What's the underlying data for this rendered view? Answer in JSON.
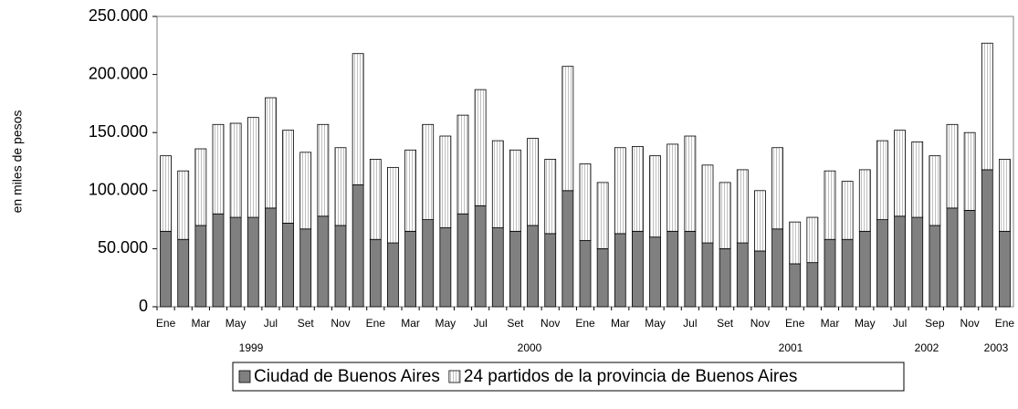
{
  "chart_data": {
    "type": "stacked_bar",
    "y_label": "en miles de pesos",
    "categories": [
      "Ene",
      null,
      "Mar",
      null,
      "May",
      null,
      "Jul",
      null,
      "Set",
      null,
      "Nov",
      null,
      "Ene",
      null,
      "Mar",
      null,
      "May",
      null,
      "Jul",
      null,
      "Set",
      null,
      "Nov",
      null,
      "Ene",
      null,
      "Mar",
      null,
      "May",
      null,
      "Jul",
      null,
      "Set",
      null,
      "Nov",
      null,
      "Ene",
      null,
      "Mar",
      null,
      "May",
      null,
      "Jul",
      null,
      "Sep",
      null,
      "Nov",
      null,
      "Ene"
    ],
    "year_labels": [
      "1999",
      "2000",
      "2001",
      "2002",
      "2003"
    ],
    "series": [
      {
        "name": "Ciudad de Buenos Aires",
        "color": "#808080",
        "values": [
          65000,
          58000,
          70000,
          80000,
          77000,
          77000,
          85000,
          72000,
          67000,
          78000,
          70000,
          105000,
          58000,
          55000,
          65000,
          75000,
          68000,
          80000,
          87000,
          68000,
          65000,
          70000,
          63000,
          100000,
          57000,
          50000,
          63000,
          65000,
          60000,
          65000,
          65000,
          55000,
          50000,
          55000,
          48000,
          67000,
          37000,
          38000,
          58000,
          58000,
          65000,
          75000,
          78000,
          77000,
          70000,
          85000,
          83000,
          118000,
          65000
        ]
      },
      {
        "name": "24 partidos de la provincia de Buenos Aires",
        "color": "#ffffff",
        "values": [
          65000,
          59000,
          66000,
          77000,
          81000,
          86000,
          95000,
          80000,
          66000,
          79000,
          67000,
          113000,
          69000,
          65000,
          70000,
          82000,
          79000,
          85000,
          100000,
          75000,
          70000,
          75000,
          64000,
          107000,
          66000,
          57000,
          74000,
          73000,
          70000,
          75000,
          82000,
          67000,
          57000,
          63000,
          52000,
          70000,
          36000,
          39000,
          59000,
          50000,
          53000,
          68000,
          74000,
          65000,
          60000,
          72000,
          67000,
          109000,
          62000
        ]
      }
    ],
    "ylim": [
      0,
      250000
    ],
    "yticks": [
      0,
      {
        "value": 50000,
        "label": "50.000"
      },
      {
        "value": 100000,
        "label": "100.000"
      },
      {
        "value": 150000,
        "label": "150.000"
      },
      {
        "value": 200000,
        "label": "200.000"
      },
      {
        "value": 250000,
        "label": "250.000"
      }
    ],
    "grid": false
  }
}
